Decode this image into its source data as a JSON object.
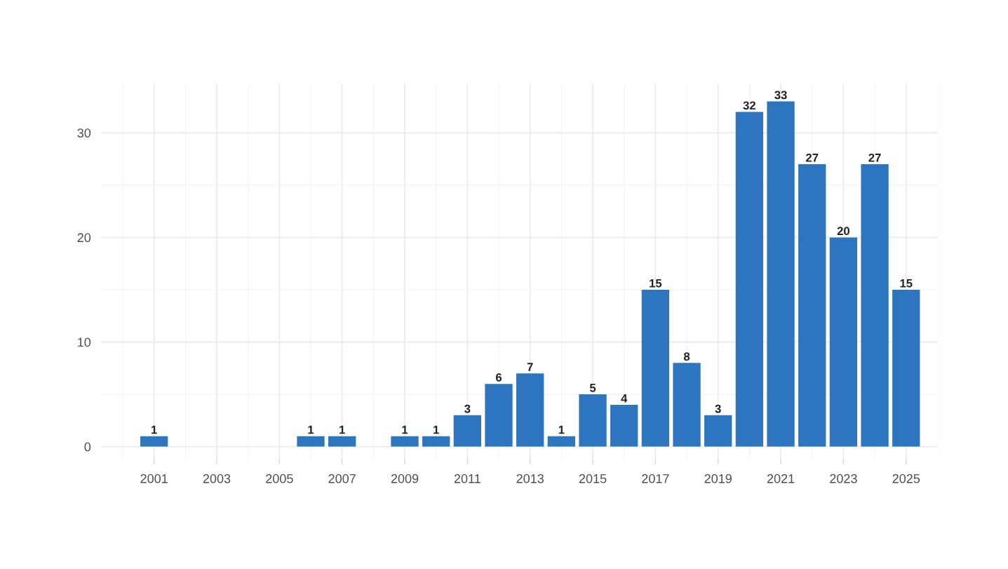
{
  "chart_data": {
    "type": "bar",
    "x": [
      2001,
      2006,
      2007,
      2009,
      2010,
      2011,
      2012,
      2013,
      2014,
      2015,
      2016,
      2017,
      2018,
      2019,
      2020,
      2021,
      2022,
      2023,
      2024,
      2025
    ],
    "values": [
      1,
      1,
      1,
      1,
      1,
      3,
      6,
      7,
      1,
      5,
      4,
      15,
      8,
      3,
      32,
      33,
      27,
      20,
      27,
      15
    ],
    "color": "#2e75bf",
    "xlim": [
      1999.3,
      2026.0
    ],
    "xticks": [
      2001,
      2003,
      2005,
      2007,
      2009,
      2011,
      2013,
      2015,
      2017,
      2019,
      2021,
      2023,
      2025
    ],
    "ylim": [
      -1.2,
      34.7
    ],
    "yticks": [
      0,
      10,
      20,
      30
    ],
    "grid": true,
    "data_labels": true
  }
}
